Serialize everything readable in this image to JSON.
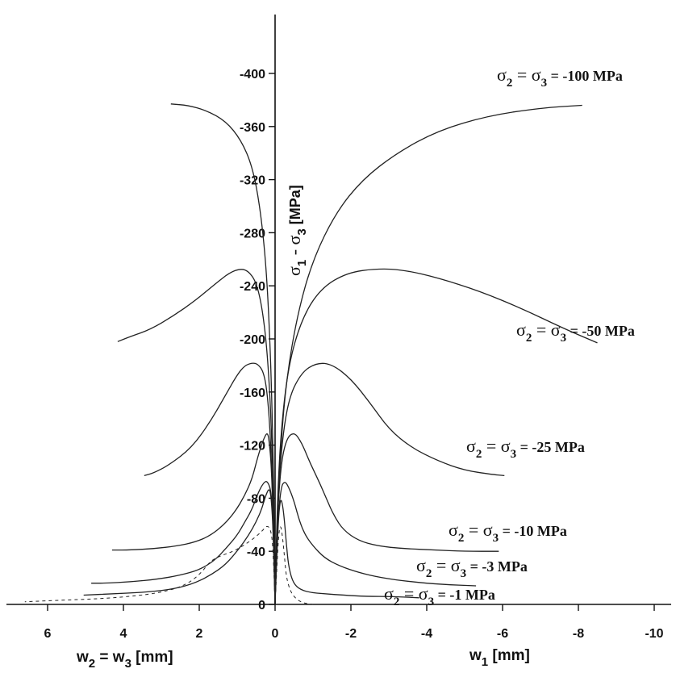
{
  "chart_data": {
    "type": "line",
    "x_axis_left": {
      "label_parts": [
        "w",
        "2",
        " = w",
        "3",
        " [mm]"
      ],
      "ticks": [
        6,
        4,
        2,
        0
      ]
    },
    "x_axis_right": {
      "label_parts": [
        "w",
        "1",
        " [mm]"
      ],
      "ticks": [
        -2,
        -4,
        -6,
        -8,
        -10
      ]
    },
    "y_axis": {
      "label_parts": [
        "σ",
        "1",
        " - σ",
        "3",
        " [MPa]"
      ],
      "ticks": [
        0,
        -40,
        -80,
        -120,
        -160,
        -200,
        -240,
        -280,
        -320,
        -360,
        -400
      ]
    },
    "xlim": [
      6.5,
      -10.2
    ],
    "ylim": [
      0,
      -400
    ],
    "series": [
      {
        "name": "σ2 = σ3 = -100 MPa",
        "label_parts": [
          "σ",
          "2",
          " = σ",
          "3",
          " = -100 MPa"
        ],
        "style": "solid",
        "left": {
          "x": [
            0.0,
            0.03,
            0.08,
            0.15,
            0.25,
            0.4,
            0.6,
            0.9,
            1.3,
            1.8,
            2.3,
            2.75
          ],
          "y": [
            0,
            -80,
            -150,
            -210,
            -260,
            -300,
            -330,
            -350,
            -364,
            -372,
            -376,
            -377
          ]
        },
        "right": {
          "x": [
            0.0,
            -0.05,
            -0.15,
            -0.3,
            -0.6,
            -1.0,
            -1.6,
            -2.3,
            -3.2,
            -4.3,
            -5.6,
            -7.0,
            -8.1
          ],
          "y": [
            0,
            -60,
            -120,
            -170,
            -220,
            -260,
            -295,
            -320,
            -340,
            -357,
            -368,
            -374,
            -376
          ]
        }
      },
      {
        "name": "σ2 = σ3 = -50 MPa",
        "label_parts": [
          "σ",
          "2",
          " = σ",
          "3",
          " = -50 MPa"
        ],
        "style": "solid",
        "left": {
          "x": [
            0.0,
            0.05,
            0.12,
            0.22,
            0.35,
            0.5,
            0.7,
            0.9,
            1.2,
            1.6,
            2.1,
            2.7,
            3.3,
            3.8,
            4.15
          ],
          "y": [
            0,
            -90,
            -150,
            -195,
            -225,
            -243,
            -251,
            -253,
            -250,
            -241,
            -229,
            -217,
            -207,
            -202,
            -198
          ]
        },
        "right": {
          "x": [
            0.0,
            -0.05,
            -0.15,
            -0.35,
            -0.7,
            -1.2,
            -1.9,
            -2.7,
            -3.4,
            -4.3,
            -5.4,
            -6.5,
            -7.6,
            -8.5
          ],
          "y": [
            0,
            -70,
            -130,
            -180,
            -215,
            -238,
            -250,
            -253,
            -252,
            -246,
            -236,
            -223,
            -208,
            -197
          ]
        }
      },
      {
        "name": "σ2 = σ3 = -25 MPa",
        "label_parts": [
          "σ",
          "2",
          " = σ",
          "3",
          " = -25 MPa"
        ],
        "style": "solid",
        "left": {
          "x": [
            0.0,
            0.05,
            0.12,
            0.2,
            0.3,
            0.45,
            0.6,
            0.8,
            1.0,
            1.3,
            1.7,
            2.2,
            2.8,
            3.2,
            3.45
          ],
          "y": [
            0,
            -70,
            -125,
            -158,
            -175,
            -181,
            -182,
            -180,
            -173,
            -158,
            -138,
            -118,
            -105,
            -99,
            -97
          ]
        },
        "right": {
          "x": [
            0.0,
            -0.05,
            -0.15,
            -0.35,
            -0.7,
            -1.1,
            -1.5,
            -2.0,
            -2.5,
            -3.0,
            -3.6,
            -4.3,
            -5.0,
            -5.7,
            -6.05
          ],
          "y": [
            0,
            -60,
            -115,
            -155,
            -175,
            -182,
            -181,
            -170,
            -152,
            -132,
            -118,
            -108,
            -101,
            -98,
            -97
          ]
        }
      },
      {
        "name": "σ2 = σ3 = -10 MPa",
        "label_parts": [
          "σ",
          "2",
          " = σ",
          "3",
          " = -10 MPa"
        ],
        "style": "solid",
        "left": {
          "x": [
            0.0,
            0.05,
            0.1,
            0.15,
            0.2,
            0.3,
            0.45,
            0.6,
            0.8,
            1.05,
            1.35,
            1.7,
            2.1,
            2.6,
            3.2,
            3.8,
            4.3
          ],
          "y": [
            0,
            -65,
            -105,
            -122,
            -130,
            -125,
            -112,
            -95,
            -82,
            -70,
            -60,
            -52,
            -47,
            -44,
            -42,
            -41,
            -41
          ]
        },
        "right": {
          "x": [
            0.0,
            -0.05,
            -0.15,
            -0.3,
            -0.5,
            -0.7,
            -0.9,
            -1.15,
            -1.35,
            -1.55,
            -1.8,
            -2.2,
            -2.7,
            -3.4,
            -4.2,
            -5.0,
            -5.9
          ],
          "y": [
            0,
            -60,
            -105,
            -125,
            -130,
            -122,
            -108,
            -93,
            -80,
            -67,
            -56,
            -48,
            -44,
            -42,
            -41,
            -40,
            -40
          ]
        }
      },
      {
        "name": "σ2 = σ3 = -3 MPa",
        "label_parts": [
          "σ",
          "2",
          " = σ",
          "3",
          " = -3 MPa"
        ],
        "style": "solid",
        "left": {
          "x": [
            0.0,
            0.05,
            0.1,
            0.2,
            0.3,
            0.45,
            0.6,
            0.8,
            1.0,
            1.3,
            1.6,
            2.0,
            2.5,
            3.1,
            3.8,
            4.5,
            4.85
          ],
          "y": [
            0,
            -60,
            -85,
            -93,
            -92,
            -84,
            -72,
            -62,
            -52,
            -42,
            -33,
            -26,
            -22,
            -19,
            -17,
            -16,
            -16
          ]
        },
        "right": {
          "x": [
            0.0,
            -0.05,
            -0.15,
            -0.25,
            -0.35,
            -0.5,
            -0.65,
            -0.8,
            -1.0,
            -1.3,
            -1.7,
            -2.2,
            -2.8,
            -3.6,
            -4.4,
            -5.3
          ],
          "y": [
            0,
            -55,
            -88,
            -93,
            -89,
            -78,
            -62,
            -52,
            -44,
            -35,
            -29,
            -24,
            -20,
            -17,
            -15,
            -14
          ]
        }
      },
      {
        "name": "σ2 = σ3 = -1 MPa",
        "label_parts": [
          "σ",
          "2",
          " = σ",
          "3",
          " = -1 MPa"
        ],
        "style": "solid",
        "left": {
          "x": [
            0.0,
            0.05,
            0.1,
            0.15,
            0.25,
            0.35,
            0.5,
            0.7,
            0.95,
            1.3,
            1.7,
            2.2,
            2.8,
            3.5,
            4.3,
            5.05
          ],
          "y": [
            0,
            -55,
            -80,
            -88,
            -82,
            -72,
            -62,
            -52,
            -42,
            -30,
            -22,
            -15,
            -11,
            -9,
            -8,
            -7
          ]
        },
        "right": {
          "x": [
            0.0,
            -0.05,
            -0.1,
            -0.15,
            -0.2,
            -0.25,
            -0.3,
            -0.35,
            -0.45,
            -0.6,
            -0.9,
            -1.3,
            -1.8,
            -2.4,
            -3.1,
            -3.8
          ],
          "y": [
            0,
            -40,
            -70,
            -80,
            -75,
            -62,
            -45,
            -30,
            -18,
            -12,
            -9,
            -8,
            -7,
            -6,
            -6,
            -5
          ]
        }
      },
      {
        "name": "dashed",
        "style": "dashed",
        "left": {
          "x": [
            0.0,
            0.05,
            0.1,
            0.2,
            0.35,
            0.55,
            0.8,
            1.1,
            1.4,
            1.7,
            2.0,
            2.4,
            3.0,
            3.8,
            4.8,
            5.8,
            6.6
          ],
          "y": [
            0,
            -40,
            -55,
            -60,
            -55,
            -50,
            -45,
            -40,
            -37,
            -33,
            -22,
            -14,
            -9,
            -6,
            -4,
            -3,
            -2
          ]
        },
        "right": {
          "x": [
            0.0,
            -0.05,
            -0.1,
            -0.15,
            -0.2,
            -0.25,
            -0.3,
            -0.4,
            -0.55,
            -0.75,
            -1.0
          ],
          "y": [
            0,
            -30,
            -55,
            -60,
            -50,
            -35,
            -20,
            -10,
            -4,
            -1,
            0
          ]
        }
      }
    ]
  }
}
